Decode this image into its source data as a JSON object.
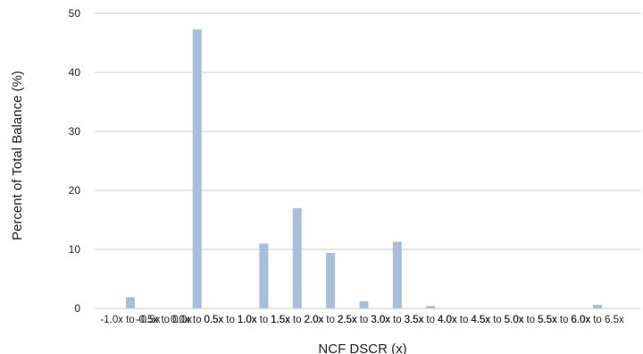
{
  "chart_data": {
    "type": "bar",
    "title": "",
    "xlabel": "NCF DSCR (x)",
    "ylabel": "Percent of Total Balance (%)",
    "ylim": [
      0,
      50
    ],
    "yticks": [
      "0",
      "10",
      "20",
      "30",
      "40",
      "50"
    ],
    "grid": true,
    "bar_color": "#a9bfd9",
    "grid_color": "#cccccc",
    "categories": [
      "-1.0x to -0.5x",
      "-0.5x to 0.0x",
      "0.0x to 0.5x",
      "0.5x to 1.0x",
      "1.0x to 1.5x",
      "1.5x to 2.0x",
      "2.0x to 2.5x",
      "2.5x to 3.0x",
      "3.0x to 3.5x",
      "3.5x to 4.0x",
      "4.0x to 4.5x",
      "4.5x to 5.0x",
      "5.0x to 5.5x",
      "5.5x to 6.0x",
      "6.0x to 6.5x"
    ],
    "values": [
      1.9,
      0,
      47.3,
      0,
      11.0,
      17.0,
      9.4,
      1.2,
      11.3,
      0.4,
      0,
      0,
      0,
      0,
      0.6
    ]
  }
}
